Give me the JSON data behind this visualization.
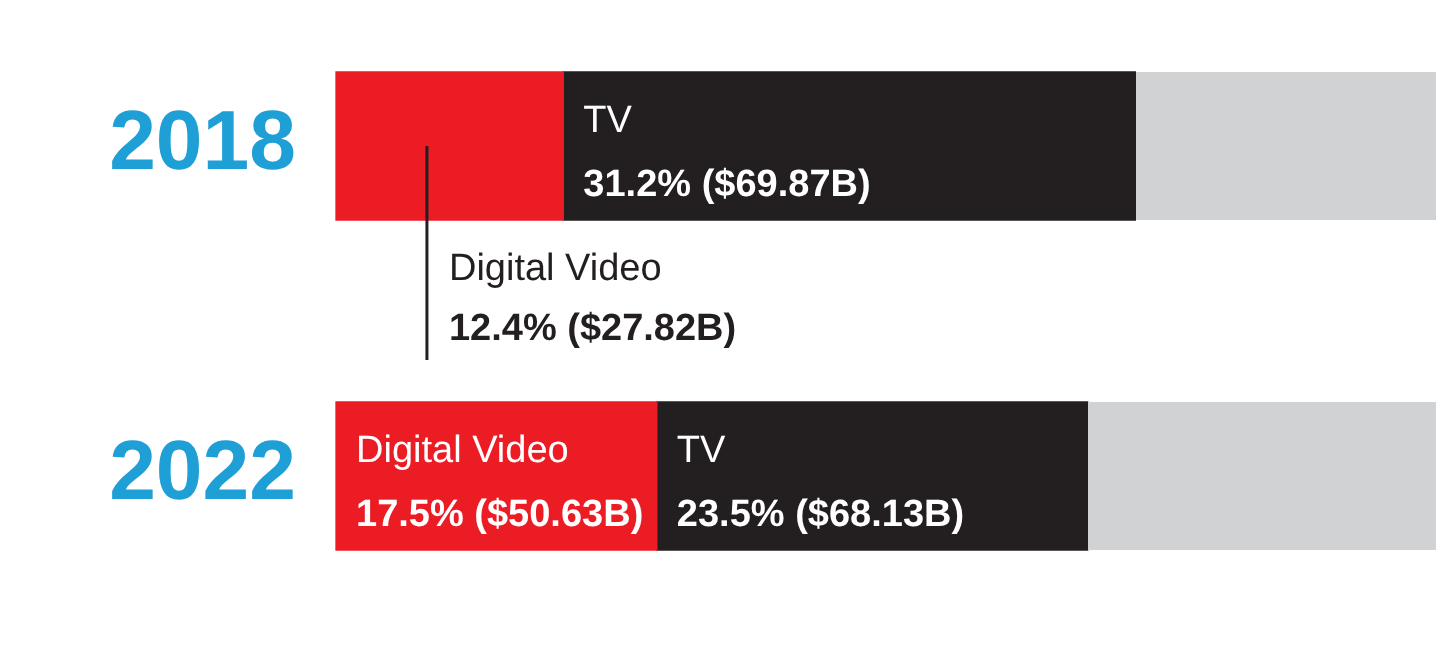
{
  "chart_data": {
    "type": "bar",
    "orientation": "horizontal",
    "stacked": true,
    "categories": [
      "2018",
      "2022"
    ],
    "series": [
      {
        "name": "Digital Video",
        "color": "#ec1c24",
        "values": [
          12.4,
          17.5
        ],
        "value_labels": [
          "12.4% ($27.82B)",
          "17.5% ($50.63B)"
        ]
      },
      {
        "name": "TV",
        "color": "#231f20",
        "values": [
          31.2,
          23.5
        ],
        "value_labels": [
          "31.2% ($69.87B)",
          "23.5% ($68.13B)"
        ]
      }
    ],
    "xlim": [
      0,
      60
    ],
    "tick_labels": "y",
    "legend": false
  }
}
